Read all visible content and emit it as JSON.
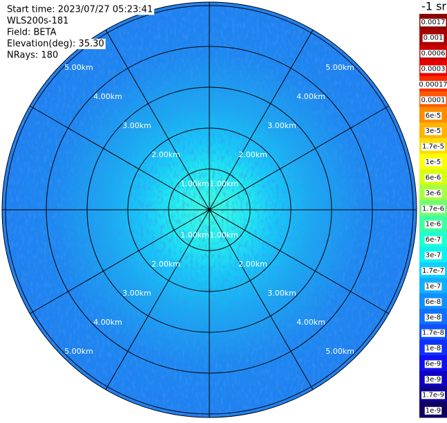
{
  "header": {
    "lines": [
      "Start time: 2023/07/27 05:23:41",
      "WLS200s-181",
      "Field: BETA",
      "Elevation(deg): 35.30",
      "NRays: 180"
    ]
  },
  "range_labels": [
    "1.00km",
    "2.00km",
    "3.00km",
    "4.00km",
    "5.00km"
  ],
  "colorbar": {
    "unit": "-1 sr",
    "labels": [
      "0.0017",
      "0.001",
      "0.0006",
      "0.0003",
      "0.00017",
      "0.0001",
      "6e-5",
      "3e-5",
      "1.7e-5",
      "1e-5",
      "6e-6",
      "3e-6",
      "1.7e-6",
      "1e-6",
      "6e-7",
      "3e-7",
      "1.7e-7",
      "1e-7",
      "6e-8",
      "3e-8",
      "1.7e-8",
      "1e-8",
      "6e-9",
      "3e-9",
      "1.7e-9",
      "1e-9"
    ],
    "colors": [
      "#8b0000",
      "#a80000",
      "#c80000",
      "#e80000",
      "#ff2a00",
      "#ff5a00",
      "#ff8c00",
      "#ffb400",
      "#ffdc00",
      "#ffff00",
      "#d8ff10",
      "#a8ff40",
      "#70ff70",
      "#40ffa0",
      "#20ffd0",
      "#10f0f0",
      "#10d0ff",
      "#10b0ff",
      "#1090ff",
      "#1070ff",
      "#1050ff",
      "#1030ff",
      "#1010f0",
      "#1000c0",
      "#100090",
      "#100060"
    ]
  }
}
